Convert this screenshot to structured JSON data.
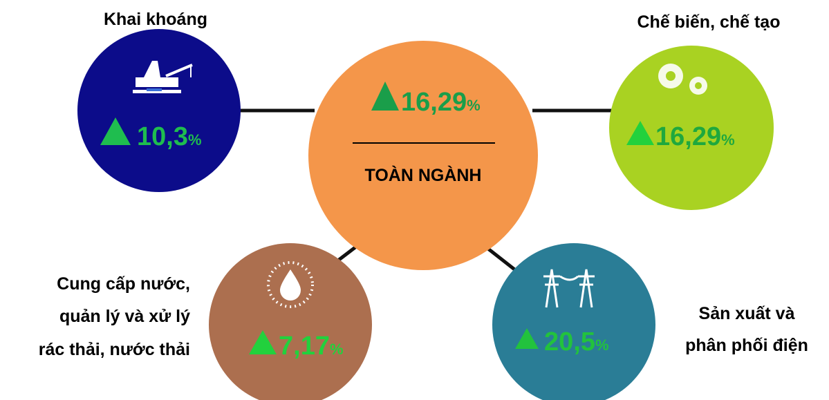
{
  "center": {
    "value": "16,29",
    "unit": "%",
    "label": "TOÀN NGÀNH"
  },
  "nodes": [
    {
      "label": [
        "Khai khoáng"
      ],
      "value": "10,3",
      "unit": "%"
    },
    {
      "label": [
        "Chế biến, chế tạo"
      ],
      "value": "16,29",
      "unit": "%"
    },
    {
      "label": [
        "Cung cấp nước,",
        "quản lý và xử lý",
        "rác thải, nước thải"
      ],
      "value": "7,17",
      "unit": "%"
    },
    {
      "label": [
        "Sản xuất và",
        "phân phối điện"
      ],
      "value": "20,5",
      "unit": "%"
    }
  ]
}
